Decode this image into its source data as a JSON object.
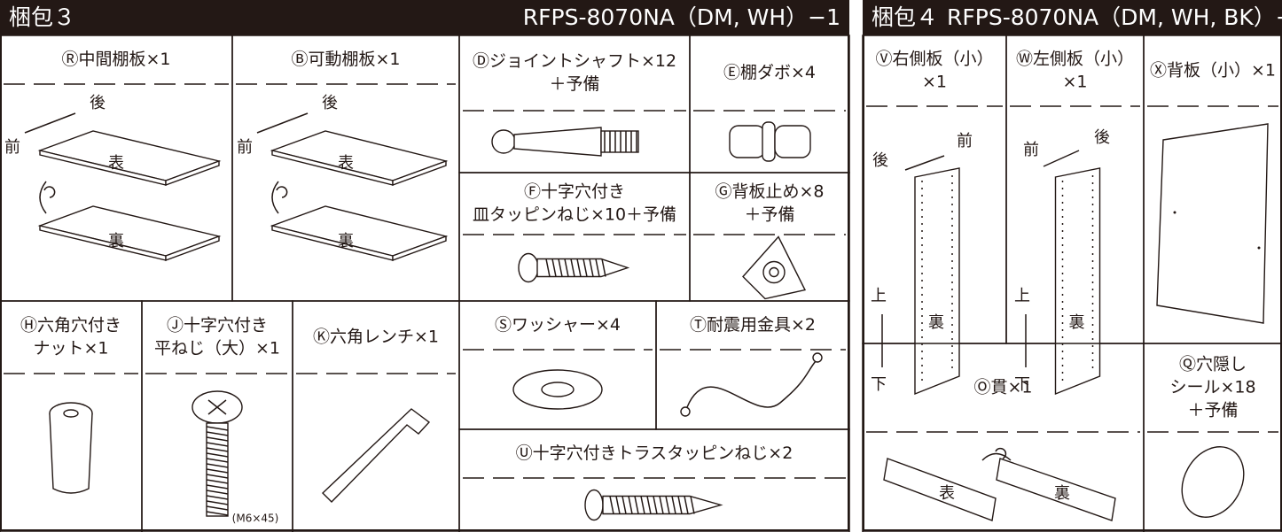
{
  "package3": {
    "title": "梱包３",
    "model": "RFPS-8070NA（DM, WH）−1",
    "parts": [
      {
        "label": [
          "Ⓡ中間棚板×1"
        ],
        "marks": [
          "後",
          "前",
          "表",
          "裏"
        ]
      },
      {
        "label": [
          "Ⓑ可動棚板×1"
        ],
        "marks": [
          "後",
          "前",
          "表",
          "裏"
        ]
      },
      {
        "label": [
          "Ⓓジョイントシャフト×12",
          "＋予備"
        ]
      },
      {
        "label": [
          "Ⓔ棚ダボ×4"
        ]
      },
      {
        "label": [
          "Ⓕ十字穴付き",
          "皿タッピンねじ×10＋予備"
        ]
      },
      {
        "label": [
          "Ⓖ背板止め×8",
          "＋予備"
        ]
      },
      {
        "label": [
          "Ⓗ六角穴付き",
          "ナット×1"
        ]
      },
      {
        "label": [
          "Ⓙ十字穴付き",
          "平ねじ（大）×1"
        ],
        "marks": [
          "(M6×45)"
        ]
      },
      {
        "label": [
          "Ⓚ六角レンチ×1"
        ]
      },
      {
        "label": [
          "Ⓢワッシャー×4"
        ]
      },
      {
        "label": [
          "Ⓣ耐震用金具×2"
        ]
      },
      {
        "label": [
          "Ⓤ十字穴付きトラスタッピンねじ×2"
        ]
      }
    ]
  },
  "package4": {
    "title": "梱包４",
    "model": "RFPS-8070NA（DM, WH, BK）−2",
    "parts": [
      {
        "label": [
          "Ⓥ右側板（小）",
          "×1"
        ],
        "marks": [
          "後",
          "前",
          "上",
          "裏",
          "下"
        ]
      },
      {
        "label": [
          "Ⓦ左側板（小）",
          "×1"
        ],
        "marks": [
          "前",
          "後",
          "上",
          "裏",
          "下"
        ]
      },
      {
        "label": [
          "Ⓧ背板（小）×1"
        ]
      },
      {
        "label": [
          "Ⓞ貫×1"
        ],
        "marks": [
          "表",
          "裏"
        ]
      },
      {
        "label": [
          "Ⓠ穴隠し",
          "シール×18",
          "＋予備"
        ]
      }
    ]
  }
}
